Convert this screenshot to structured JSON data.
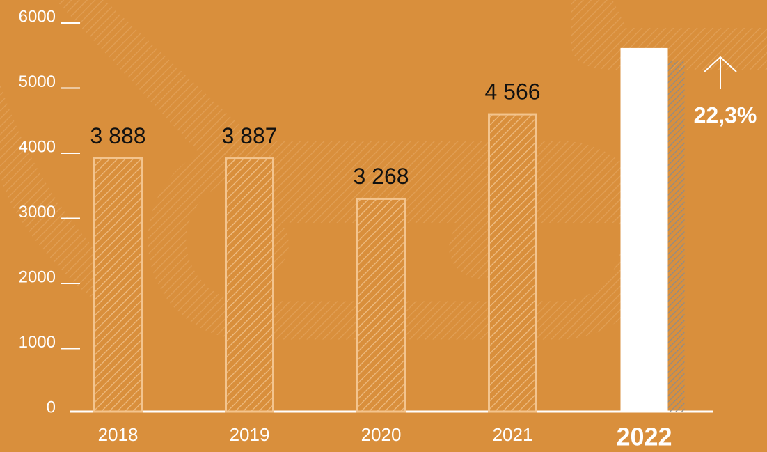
{
  "chart_data": {
    "type": "bar",
    "categories": [
      "2018",
      "2019",
      "2020",
      "2021",
      "2022"
    ],
    "values": [
      3888,
      3887,
      3268,
      4566,
      5584
    ],
    "value_labels": [
      "3 888",
      "3 887",
      "3 268",
      "4 566",
      null
    ],
    "color": "#f3c48e",
    "highlight_color": "#ffffff",
    "highlight_index": 4,
    "ylim": [
      0,
      6000
    ],
    "yticks": [
      0,
      1000,
      2000,
      3000,
      4000,
      5000,
      6000
    ],
    "annotation": "22,3%"
  }
}
